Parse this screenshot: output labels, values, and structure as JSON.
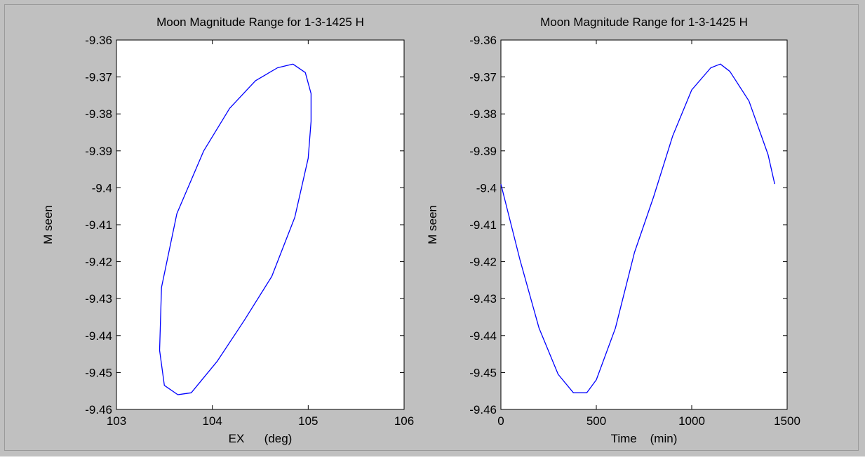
{
  "figure": {
    "background": "#c0c0c0",
    "axes_background": "#ffffff",
    "line_color": "#0000ff"
  },
  "chart_data": [
    {
      "type": "line",
      "title": "Moon Magnitude Range for 1-3-1425 H",
      "xlabel": "EX      (deg)",
      "ylabel": "M seen",
      "xlim": [
        103,
        106
      ],
      "ylim": [
        -9.46,
        -9.36
      ],
      "x_ticks": [
        "103",
        "104",
        "105",
        "106"
      ],
      "y_ticks": [
        "-9.36",
        "-9.37",
        "-9.38",
        "-9.39",
        "-9.4",
        "-9.41",
        "-9.42",
        "-9.43",
        "-9.44",
        "-9.45",
        "-9.46"
      ],
      "grid": false,
      "series": [
        {
          "color": "#0000ff",
          "x": [
            104.84,
            104.97,
            105.03,
            105.03,
            105.0,
            104.86,
            104.62,
            104.33,
            104.05,
            103.78,
            103.64,
            103.5,
            103.45,
            103.47,
            103.63,
            103.91,
            104.18,
            104.45,
            104.68,
            104.84
          ],
          "y": [
            -9.3665,
            -9.3688,
            -9.3745,
            -9.382,
            -9.392,
            -9.408,
            -9.424,
            -9.436,
            -9.447,
            -9.4555,
            -9.456,
            -9.4535,
            -9.444,
            -9.427,
            -9.407,
            -9.39,
            -9.3785,
            -9.371,
            -9.3675,
            -9.3665
          ]
        }
      ]
    },
    {
      "type": "line",
      "title": "Moon Magnitude Range for 1-3-1425 H",
      "xlabel": "Time    (min)",
      "ylabel": "M seen",
      "xlim": [
        0,
        1500
      ],
      "ylim": [
        -9.46,
        -9.36
      ],
      "x_ticks": [
        "0",
        "500",
        "1000",
        "1500"
      ],
      "y_ticks": [
        "-9.36",
        "-9.37",
        "-9.38",
        "-9.39",
        "-9.4",
        "-9.41",
        "-9.42",
        "-9.43",
        "-9.44",
        "-9.45",
        "-9.46"
      ],
      "grid": false,
      "series": [
        {
          "color": "#0000ff",
          "x": [
            0,
            100,
            200,
            300,
            380,
            450,
            500,
            600,
            700,
            800,
            900,
            1000,
            1100,
            1150,
            1200,
            1300,
            1400,
            1435
          ],
          "y": [
            -9.399,
            -9.4195,
            -9.438,
            -9.4505,
            -9.4555,
            -9.4555,
            -9.452,
            -9.438,
            -9.4175,
            -9.4025,
            -9.386,
            -9.3735,
            -9.3675,
            -9.3665,
            -9.3685,
            -9.3765,
            -9.391,
            -9.399
          ]
        }
      ]
    }
  ]
}
